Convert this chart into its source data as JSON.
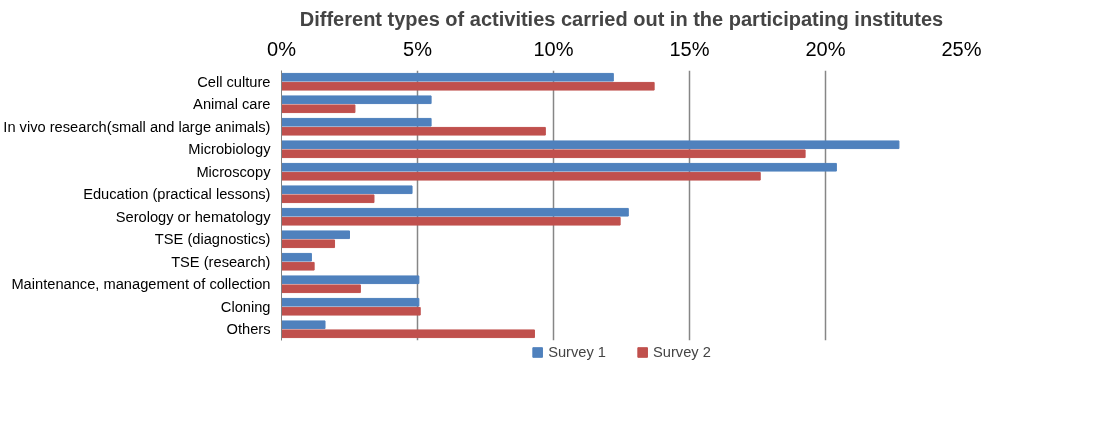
{
  "chart_data": {
    "type": "bar",
    "orientation": "horizontal",
    "title": "Different types of activities carried out in the participating institutes",
    "categories": [
      "Cell culture",
      "Animal care",
      "In vivo research(small and large animals)",
      "Microbiology",
      "Microscopy",
      "Education (practical lessons)",
      "Serology or hematology",
      "TSE (diagnostics)",
      "TSE (research)",
      "Maintenance, management of collection",
      "Cloning",
      "Others"
    ],
    "series": [
      {
        "name": "Survey 1",
        "color": "#4f81bd",
        "values": [
          12.2,
          5.5,
          5.5,
          22.7,
          20.4,
          4.8,
          12.75,
          2.5,
          1.1,
          5.05,
          5.05,
          1.6
        ]
      },
      {
        "name": "Survey 2",
        "color": "#c0504d",
        "values": [
          13.7,
          2.7,
          9.7,
          19.25,
          17.6,
          3.4,
          12.45,
          1.95,
          1.2,
          2.9,
          5.1,
          9.3
        ]
      }
    ],
    "xlim": [
      0,
      25
    ],
    "xticks": [
      {
        "value": 0,
        "label": "0%"
      },
      {
        "value": 5,
        "label": "5%"
      },
      {
        "value": 10,
        "label": "10%"
      },
      {
        "value": 15,
        "label": "15%"
      },
      {
        "value": 20,
        "label": "20%"
      },
      {
        "value": 25,
        "label": "25%"
      }
    ],
    "grid": "x",
    "legend": "bottom"
  }
}
